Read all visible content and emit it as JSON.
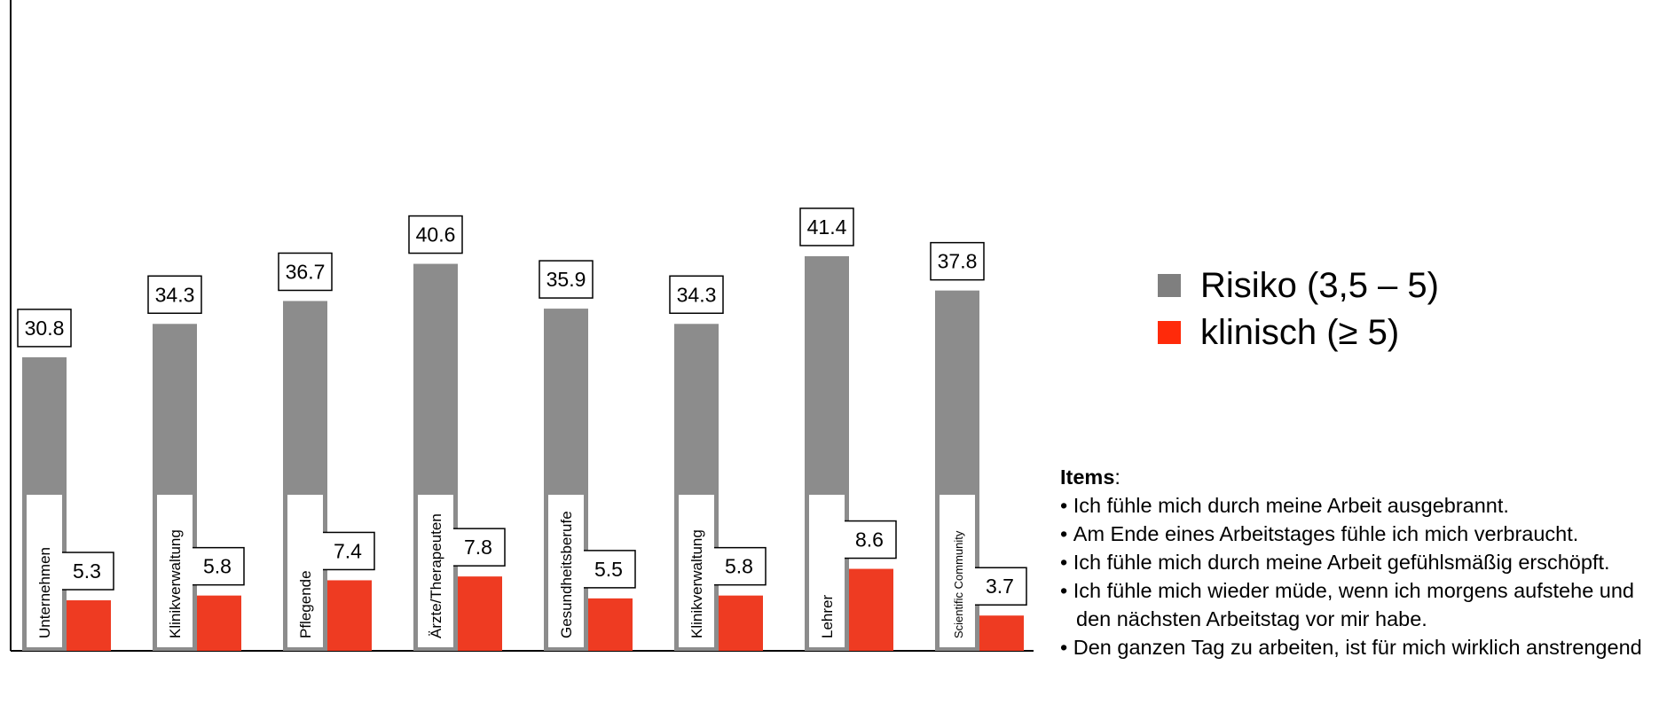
{
  "chart_data": {
    "type": "bar",
    "categories": [
      "Unternehmen",
      "Klinikverwaltung",
      "Pflegende",
      "Ärzte/Therapeuten",
      "Gesundheitsberufe",
      "Klinikverwaltung",
      "Lehrer",
      "Scientific Community"
    ],
    "series": [
      {
        "name": "Risiko (3,5 – 5)",
        "color": "#8c8c8c",
        "values": [
          30.8,
          34.3,
          36.7,
          40.6,
          35.9,
          34.3,
          41.4,
          37.8
        ]
      },
      {
        "name": "klinisch (≥ 5)",
        "color": "#ee3b22",
        "values": [
          5.3,
          5.8,
          7.4,
          7.8,
          5.5,
          5.8,
          8.6,
          3.7
        ]
      }
    ],
    "value_labels": [
      [
        "30.8",
        "34.3",
        "36.7",
        "40.6",
        "35.9",
        "34.3",
        "41.4",
        "37.8"
      ],
      [
        "5.3",
        "5.8",
        "7.4",
        "7.8",
        "5.5",
        "5.8",
        "8.6",
        "3.7"
      ]
    ],
    "ylim": [
      0,
      50
    ],
    "grid": false,
    "legend_position": "right"
  },
  "legend": {
    "items": [
      {
        "label": "Risiko (3,5 – 5)",
        "color": "#7f7f7f"
      },
      {
        "label": "klinisch (≥ 5)",
        "color": "#ff2a0a"
      }
    ]
  },
  "items_box": {
    "title": "Items",
    "title_suffix": ":",
    "lines": [
      "Ich fühle mich durch meine Arbeit ausgebrannt.",
      "Am Ende eines Arbeitstages fühle ich mich verbraucht.",
      "Ich fühle mich durch meine Arbeit gefühlsmäßig erschöpft.",
      "Ich fühle mich wieder müde, wenn ich morgens aufstehe und den nächsten Arbeitstag vor mir habe.",
      "Den ganzen Tag zu arbeiten, ist für mich wirklich anstrengend"
    ]
  }
}
